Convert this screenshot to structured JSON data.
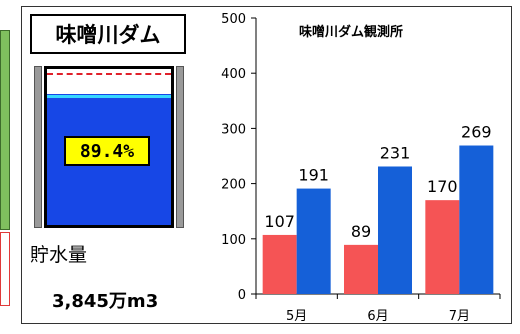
{
  "dam": {
    "name": "味噌川ダム",
    "storage_rate_text": "89.4%",
    "storage_rate_value": 89.4,
    "volume_label": "貯水量",
    "volume_value": "3,845万m3"
  },
  "colors": {
    "left_edge_green": "#7fbf5e",
    "left_edge_red": "#e03a3a",
    "series_a": "#f55455",
    "series_b": "#1560d8",
    "water": "#1747e6",
    "percent_box": "#ffff00"
  },
  "chart_data": {
    "type": "bar",
    "title": "味噌川ダム観測所",
    "categories": [
      "5月",
      "6月",
      "7月"
    ],
    "series": [
      {
        "values": [
          107,
          89,
          170
        ],
        "color": "#f55455"
      },
      {
        "values": [
          191,
          231,
          269
        ],
        "color": "#1560d8"
      }
    ],
    "ylim": [
      0,
      500
    ],
    "yticks": [
      0,
      100,
      200,
      300,
      400,
      500
    ],
    "grid": false,
    "legend": "none"
  }
}
